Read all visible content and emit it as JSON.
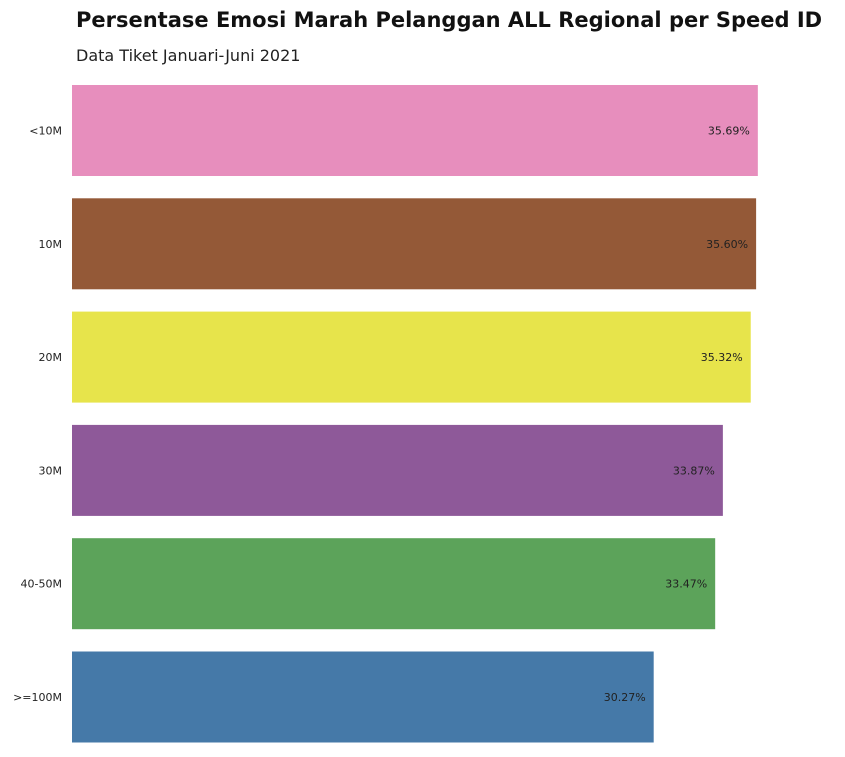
{
  "chart_data": {
    "type": "bar",
    "orientation": "horizontal",
    "title": "Persentase Emosi Marah Pelanggan ALL Regional per Speed ID",
    "subtitle": "Data Tiket Januari-Juni 2021",
    "xlabel": "",
    "ylabel": "",
    "categories": [
      "<10M",
      "10M",
      "20M",
      "30M",
      "40-50M",
      ">=100M"
    ],
    "values": [
      35.69,
      35.6,
      35.32,
      33.87,
      33.47,
      30.27
    ],
    "value_labels": [
      "35.69%",
      "35.60%",
      "35.32%",
      "33.87%",
      "33.47%",
      "30.27%"
    ],
    "colors": [
      "#e78ebd",
      "#945937",
      "#e7e44b",
      "#8e5999",
      "#5ca35a",
      "#4579a8"
    ],
    "xlim": [
      0,
      38.3
    ],
    "grid": false,
    "legend": "none"
  }
}
